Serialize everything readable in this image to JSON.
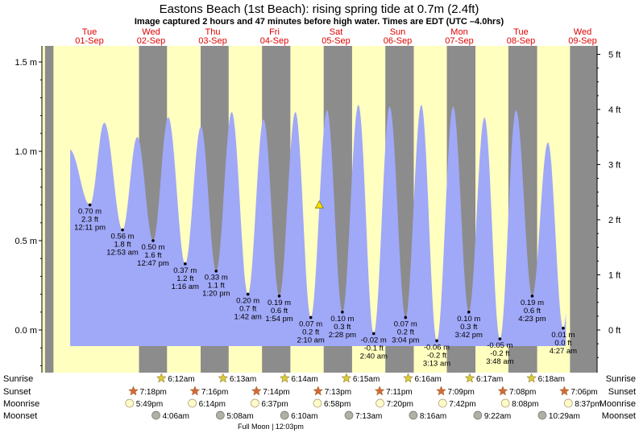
{
  "title": "Eastons Beach (1st Beach): rising  spring tide at 0.7m (2.4ft)",
  "subtitle": "Image captured 2 hours and 47 minutes before high water. Times are EDT (UTC –4.0hrs)",
  "colors": {
    "day_bg": "#ffffc0",
    "night_bg": "#8c8c8c",
    "tide_fill": "#a0a8f8",
    "day_label": "#e00000",
    "sunrise_star": "#d8cc38",
    "sunset_star": "#d86838",
    "moonrise": "#fffbc8",
    "moonset": "#b0b0a8"
  },
  "chart_data": {
    "type": "area",
    "y_left_label_unit": "m",
    "y_right_label_unit": "ft",
    "ylim_m": [
      -0.24,
      1.58
    ],
    "yticks_left": [
      "1.5 m",
      "1.0 m",
      "0.5 m",
      "0.0 m"
    ],
    "yticks_left_values": [
      1.5,
      1.0,
      0.5,
      0.0
    ],
    "yticks_right": [
      "5 ft",
      "4 ft",
      "3 ft",
      "2 ft",
      "1 ft",
      "0 ft"
    ],
    "yticks_right_values": [
      5,
      4,
      3,
      2,
      1,
      0
    ],
    "days": [
      {
        "dow": "Tue",
        "date": "01-Sep",
        "t": 0
      },
      {
        "dow": "Wed",
        "date": "02-Sep",
        "t": 24
      },
      {
        "dow": "Thu",
        "date": "03-Sep",
        "t": 48
      },
      {
        "dow": "Fri",
        "date": "04-Sep",
        "t": 72
      },
      {
        "dow": "Sat",
        "date": "05-Sep",
        "t": 96
      },
      {
        "dow": "Sun",
        "date": "06-Sep",
        "t": 120
      },
      {
        "dow": "Mon",
        "date": "07-Sep",
        "t": 144
      },
      {
        "dow": "Tue",
        "date": "08-Sep",
        "t": 168
      },
      {
        "dow": "Wed",
        "date": "09-Sep",
        "t": 192
      }
    ],
    "time_range_hours": [
      -14,
      204
    ],
    "series_range_hours": [
      -7.5,
      185.5
    ],
    "nights": [
      {
        "start": -14,
        "end": -17.3
      },
      {
        "start": 19.3,
        "end": 30.2
      },
      {
        "start": 43.3,
        "end": 54.2
      },
      {
        "start": 67.2,
        "end": 78.23
      },
      {
        "start": 91.2,
        "end": 102.25
      },
      {
        "start": 115.2,
        "end": 126.27
      },
      {
        "start": 139.15,
        "end": 150.28
      },
      {
        "start": 163.1,
        "end": 174.3
      },
      {
        "start": 187.1,
        "end": 204
      }
    ],
    "extremes": [
      {
        "t": -7.7,
        "h": 1.01
      },
      {
        "t": 0.18,
        "h": 0.7,
        "ft": "2.3 ft",
        "time": "12:11 pm",
        "labeled": true
      },
      {
        "t": 5.8,
        "h": 1.16
      },
      {
        "t": 12.88,
        "h": 0.56,
        "ft": "1.8 ft",
        "time": "12:53 am",
        "labeled": true
      },
      {
        "t": 18.6,
        "h": 1.08
      },
      {
        "t": 24.78,
        "h": 0.5,
        "ft": "1.6 ft",
        "time": "12:47 pm",
        "labeled": true
      },
      {
        "t": 30.7,
        "h": 1.19
      },
      {
        "t": 37.27,
        "h": 0.37,
        "ft": "1.2 ft",
        "time": "1:16 am",
        "labeled": true
      },
      {
        "t": 43.4,
        "h": 1.14
      },
      {
        "t": 49.33,
        "h": 0.33,
        "ft": "1.1 ft",
        "time": "1:20 pm",
        "labeled": true
      },
      {
        "t": 55.4,
        "h": 1.22
      },
      {
        "t": 61.7,
        "h": 0.2,
        "ft": "0.7 ft",
        "time": "1:42 am",
        "labeled": true
      },
      {
        "t": 67.8,
        "h": 1.18
      },
      {
        "t": 73.9,
        "h": 0.19,
        "ft": "0.6 ft",
        "time": "1:54 pm",
        "labeled": true
      },
      {
        "t": 80.2,
        "h": 1.22
      },
      {
        "t": 86.17,
        "h": 0.07,
        "ft": "0.2 ft",
        "time": "2:10 am",
        "labeled": true
      },
      {
        "t": 92.5,
        "h": 1.23
      },
      {
        "t": 98.47,
        "h": 0.1,
        "ft": "0.3 ft",
        "time": "2:28 pm",
        "labeled": true
      },
      {
        "t": 104.7,
        "h": 1.26
      },
      {
        "t": 110.67,
        "h": -0.02,
        "ft": "-0.1 ft",
        "time": "2:40 am",
        "labeled": true
      },
      {
        "t": 116.9,
        "h": 1.25
      },
      {
        "t": 123.07,
        "h": 0.07,
        "ft": "0.2 ft",
        "time": "3:04 pm",
        "labeled": true
      },
      {
        "t": 129.2,
        "h": 1.26
      },
      {
        "t": 135.22,
        "h": -0.06,
        "ft": "-0.2 ft",
        "time": "3:13 am",
        "labeled": true
      },
      {
        "t": 141.6,
        "h": 1.25
      },
      {
        "t": 147.7,
        "h": 0.1,
        "ft": "0.3 ft",
        "time": "3:42 pm",
        "labeled": true
      },
      {
        "t": 153.8,
        "h": 1.19
      },
      {
        "t": 159.8,
        "h": -0.05,
        "ft": "-0.2 ft",
        "time": "3:48 am",
        "labeled": true
      },
      {
        "t": 166.1,
        "h": 1.23
      },
      {
        "t": 172.38,
        "h": 0.19,
        "ft": "0.6 ft",
        "time": "4:23 pm",
        "labeled": true
      },
      {
        "t": 178.5,
        "h": 1.05
      },
      {
        "t": 184.45,
        "h": 0.01,
        "ft": "0.0 ft",
        "time": "4:27 am",
        "labeled": true
      },
      {
        "t": 190.6,
        "h": 1.2
      }
    ],
    "now_marker": {
      "t": 89.5,
      "h": 0.7
    }
  },
  "rows": {
    "labels": [
      "Sunrise",
      "Sunset",
      "Moonrise",
      "Moonset"
    ],
    "sunrise": [
      {
        "t": 30.2,
        "time": "6:12am"
      },
      {
        "t": 54.22,
        "time": "6:13am"
      },
      {
        "t": 78.23,
        "time": "6:14am"
      },
      {
        "t": 102.25,
        "time": "6:15am"
      },
      {
        "t": 126.27,
        "time": "6:16am"
      },
      {
        "t": 150.28,
        "time": "6:17am"
      },
      {
        "t": 174.3,
        "time": "6:18am"
      }
    ],
    "sunset": [
      {
        "t": 19.3,
        "time": "7:18pm"
      },
      {
        "t": 43.27,
        "time": "7:16pm"
      },
      {
        "t": 67.23,
        "time": "7:14pm"
      },
      {
        "t": 91.22,
        "time": "7:13pm"
      },
      {
        "t": 115.18,
        "time": "7:11pm"
      },
      {
        "t": 139.15,
        "time": "7:09pm"
      },
      {
        "t": 163.13,
        "time": "7:08pm"
      },
      {
        "t": 187.1,
        "time": "7:06pm"
      }
    ],
    "moonrise": [
      {
        "t": 17.82,
        "time": "5:49pm"
      },
      {
        "t": 42.23,
        "time": "6:14pm"
      },
      {
        "t": 66.62,
        "time": "6:37pm"
      },
      {
        "t": 90.97,
        "time": "6:58pm"
      },
      {
        "t": 115.33,
        "time": "7:20pm"
      },
      {
        "t": 139.7,
        "time": "7:42pm"
      },
      {
        "t": 164.13,
        "time": "8:08pm"
      },
      {
        "t": 188.62,
        "time": "8:37pm"
      }
    ],
    "moonset": [
      {
        "t": 28.1,
        "time": "4:06am"
      },
      {
        "t": 53.13,
        "time": "5:08am"
      },
      {
        "t": 78.17,
        "time": "6:10am"
      },
      {
        "t": 103.22,
        "time": "7:13am"
      },
      {
        "t": 128.27,
        "time": "8:16am"
      },
      {
        "t": 153.37,
        "time": "9:22am"
      },
      {
        "t": 178.48,
        "time": "10:29am"
      }
    ],
    "full_moon": "Full Moon | 12:03pm"
  }
}
